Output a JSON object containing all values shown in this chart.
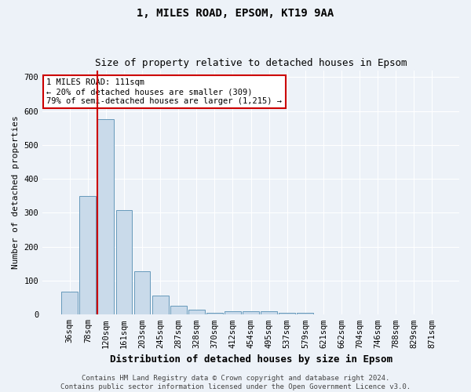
{
  "title_line1": "1, MILES ROAD, EPSOM, KT19 9AA",
  "title_line2": "Size of property relative to detached houses in Epsom",
  "xlabel": "Distribution of detached houses by size in Epsom",
  "ylabel": "Number of detached properties",
  "categories": [
    "36sqm",
    "78sqm",
    "120sqm",
    "161sqm",
    "203sqm",
    "245sqm",
    "287sqm",
    "328sqm",
    "370sqm",
    "412sqm",
    "454sqm",
    "495sqm",
    "537sqm",
    "579sqm",
    "621sqm",
    "662sqm",
    "704sqm",
    "746sqm",
    "788sqm",
    "829sqm",
    "871sqm"
  ],
  "values": [
    68,
    350,
    575,
    308,
    128,
    57,
    25,
    14,
    5,
    9,
    10,
    9,
    5,
    4,
    0,
    0,
    0,
    0,
    0,
    0,
    0
  ],
  "bar_color": "#c9daea",
  "bar_edge_color": "#6699bb",
  "red_line_color": "#cc0000",
  "red_line_index": 2,
  "annotation_text": "1 MILES ROAD: 111sqm\n← 20% of detached houses are smaller (309)\n79% of semi-detached houses are larger (1,215) →",
  "annotation_box_color": "white",
  "annotation_box_edge": "#cc0000",
  "footer_text": "Contains HM Land Registry data © Crown copyright and database right 2024.\nContains public sector information licensed under the Open Government Licence v3.0.",
  "ylim": [
    0,
    720
  ],
  "yticks": [
    0,
    100,
    200,
    300,
    400,
    500,
    600,
    700
  ],
  "background_color": "#edf2f8",
  "grid_color": "#ffffff",
  "title_fontsize": 10,
  "subtitle_fontsize": 9,
  "xlabel_fontsize": 9,
  "ylabel_fontsize": 8,
  "tick_fontsize": 7.5,
  "annotation_fontsize": 7.5,
  "footer_fontsize": 6.5
}
